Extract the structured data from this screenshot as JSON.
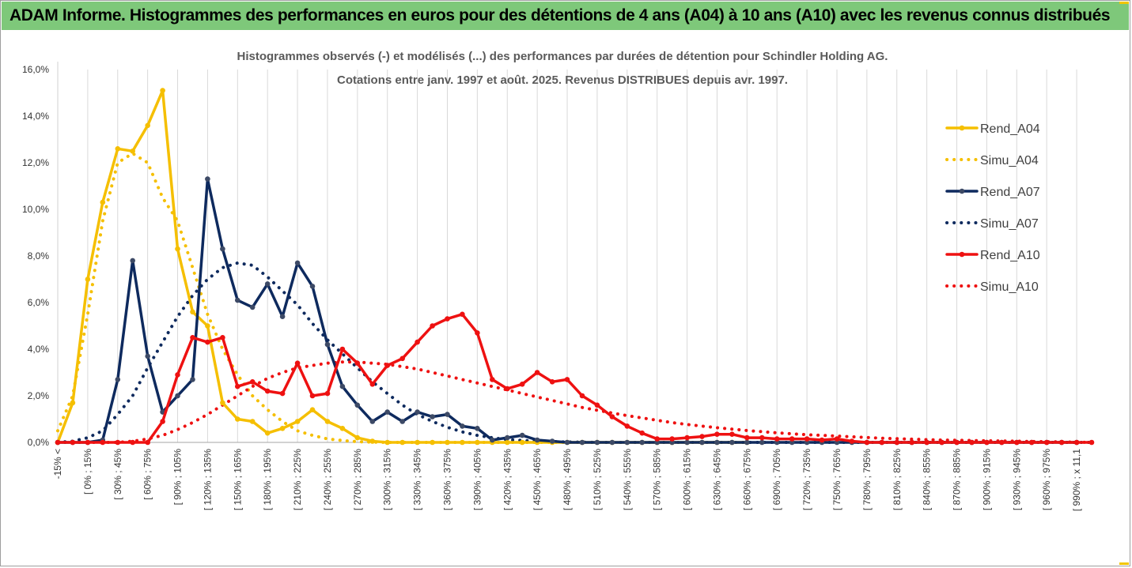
{
  "banner": {
    "title": "ADAM Informe. Histogrammes des performances en euros pour des détentions de 4 ans (A04) à 10 ans (A10) avec les revenus connus distribués"
  },
  "colors": {
    "banner": "#7ec87a",
    "A04": "#f5bf00",
    "A07": "#0e2a5e",
    "A10": "#ee1111",
    "grid": "#d9d9d9"
  },
  "chart_data": {
    "type": "line",
    "title": "Histogrammes observés (-) et modélisés (...) des performances par durées de détention pour Schindler Holding AG.",
    "subtitle": "Cotations entre janv. 1997 et août. 2025. Revenus DISTRIBUES depuis avr. 1997.",
    "ylim": [
      0,
      16
    ],
    "yticks": [
      "0,0%",
      "2,0%",
      "4,0%",
      "6,0%",
      "8,0%",
      "10,0%",
      "12,0%",
      "14,0%",
      "16,0%"
    ],
    "x_tick_labels": [
      "-15% <",
      "[ 0% ; 15%",
      "[ 30% ; 45%",
      "[ 60% ; 75%",
      "[ 90% ; 105%",
      "[ 120% ; 135%",
      "[ 150% ; 165%",
      "[ 180% ; 195%",
      "[ 210% ; 225%",
      "[ 240% ; 255%",
      "[ 270% ; 285%",
      "[ 300% ; 315%",
      "[ 330% ; 345%",
      "[ 360% ; 375%",
      "[ 390% ; 405%",
      "[ 420% ; 435%",
      "[ 450% ; 465%",
      "[ 480% ; 495%",
      "[ 510% ; 525%",
      "[ 540% ; 555%",
      "[ 570% ; 585%",
      "[ 600% ; 615%",
      "[ 630% ; 645%",
      "[ 660% ; 675%",
      "[ 690% ; 705%",
      "[ 720% ; 735%",
      "[ 750% ; 765%",
      "[ 780% ; 795%",
      "[ 810% ; 825%",
      "[ 840% ; 855%",
      "[ 870% ; 885%",
      "[ 900% ; 915%",
      "[ 930% ; 945%",
      "[ 960% ; 975%",
      "[ 990% ; x 11,1"
    ],
    "grid": true,
    "legend_position": "right",
    "series": [
      {
        "name": "Rend_A04",
        "style": "solid",
        "color": "#f5bf00",
        "values": [
          0,
          1.7,
          7.0,
          10.3,
          12.6,
          12.5,
          13.6,
          15.1,
          8.3,
          5.6,
          5.0,
          1.7,
          1.0,
          0.9,
          0.4,
          0.6,
          0.9,
          1.4,
          0.9,
          0.6,
          0.2,
          0.05,
          0,
          0,
          0,
          0,
          0,
          0,
          0,
          0,
          0,
          0,
          0,
          0,
          0,
          0,
          0,
          0,
          0,
          0,
          0,
          0,
          0,
          0,
          0,
          0,
          0
        ]
      },
      {
        "name": "Simu_A04",
        "style": "dotted",
        "color": "#f5bf00",
        "values": [
          0.5,
          2.0,
          5.5,
          9.5,
          12.0,
          12.4,
          12.0,
          10.5,
          9.5,
          7.5,
          5.5,
          4.0,
          2.9,
          2.0,
          1.4,
          0.9,
          0.5,
          0.3,
          0.15,
          0.08,
          0.03,
          0.01,
          0,
          0,
          0,
          0,
          0,
          0,
          0,
          0,
          0,
          0,
          0,
          0,
          0,
          0,
          0,
          0,
          0,
          0,
          0,
          0,
          0,
          0,
          0,
          0,
          0
        ]
      },
      {
        "name": "Rend_A07",
        "style": "solid",
        "color": "#0e2a5e",
        "values": [
          0,
          0,
          0,
          0.1,
          2.7,
          7.8,
          3.7,
          1.3,
          2.0,
          2.7,
          11.3,
          8.3,
          6.1,
          5.8,
          6.8,
          5.4,
          7.7,
          6.7,
          4.2,
          2.4,
          1.6,
          0.9,
          1.3,
          0.9,
          1.3,
          1.1,
          1.2,
          0.7,
          0.6,
          0.1,
          0.2,
          0.3,
          0.1,
          0.05,
          0,
          0,
          0,
          0,
          0,
          0,
          0,
          0,
          0,
          0,
          0,
          0,
          0,
          0,
          0,
          0,
          0,
          0,
          0,
          0,
          0,
          0,
          0,
          0,
          0,
          0,
          0,
          0,
          0,
          0,
          0,
          0,
          0,
          0,
          0
        ]
      },
      {
        "name": "Simu_A07",
        "style": "dotted",
        "color": "#0e2a5e",
        "values": [
          0,
          0.05,
          0.2,
          0.5,
          1.2,
          2.0,
          3.2,
          4.3,
          5.4,
          6.3,
          7.0,
          7.5,
          7.7,
          7.6,
          7.1,
          6.5,
          5.9,
          5.1,
          4.4,
          3.8,
          3.2,
          2.6,
          2.1,
          1.6,
          1.2,
          0.9,
          0.65,
          0.45,
          0.3,
          0.2,
          0.12,
          0.08,
          0.05,
          0.03,
          0.02,
          0.01,
          0,
          0,
          0,
          0,
          0,
          0,
          0,
          0,
          0,
          0,
          0,
          0,
          0,
          0,
          0,
          0,
          0,
          0,
          0,
          0,
          0,
          0,
          0,
          0,
          0,
          0,
          0,
          0,
          0,
          0,
          0,
          0,
          0,
          0
        ]
      },
      {
        "name": "Rend_A10",
        "style": "solid",
        "color": "#ee1111",
        "values": [
          0,
          0,
          0,
          0,
          0,
          0,
          0,
          0.9,
          2.9,
          4.5,
          4.3,
          4.5,
          2.4,
          2.6,
          2.2,
          2.1,
          3.4,
          2.0,
          2.1,
          4.0,
          3.4,
          2.5,
          3.3,
          3.6,
          4.3,
          5.0,
          5.3,
          5.5,
          4.7,
          2.7,
          2.3,
          2.5,
          3.0,
          2.6,
          2.7,
          2.0,
          1.6,
          1.1,
          0.7,
          0.4,
          0.15,
          0.15,
          0.2,
          0.25,
          0.35,
          0.35,
          0.2,
          0.2,
          0.15,
          0.15,
          0.15,
          0.1,
          0.15,
          0.05,
          0,
          0,
          0,
          0,
          0,
          0,
          0,
          0,
          0,
          0,
          0,
          0,
          0,
          0,
          0,
          0
        ]
      },
      {
        "name": "Simu_A10",
        "style": "dotted",
        "color": "#ee1111",
        "values": [
          0,
          0,
          0,
          0,
          0,
          0.05,
          0.15,
          0.3,
          0.55,
          0.85,
          1.2,
          1.6,
          2.0,
          2.4,
          2.75,
          3.0,
          3.2,
          3.3,
          3.4,
          3.45,
          3.45,
          3.4,
          3.35,
          3.25,
          3.15,
          3.0,
          2.85,
          2.7,
          2.55,
          2.4,
          2.25,
          2.1,
          1.95,
          1.8,
          1.65,
          1.5,
          1.38,
          1.26,
          1.15,
          1.05,
          0.95,
          0.85,
          0.77,
          0.7,
          0.63,
          0.57,
          0.51,
          0.46,
          0.41,
          0.37,
          0.33,
          0.3,
          0.27,
          0.24,
          0.21,
          0.18,
          0.16,
          0.14,
          0.12,
          0.1,
          0.09,
          0.08,
          0.07,
          0.06,
          0.05,
          0.04,
          0.03,
          0.02,
          0.01,
          0
        ]
      }
    ]
  }
}
